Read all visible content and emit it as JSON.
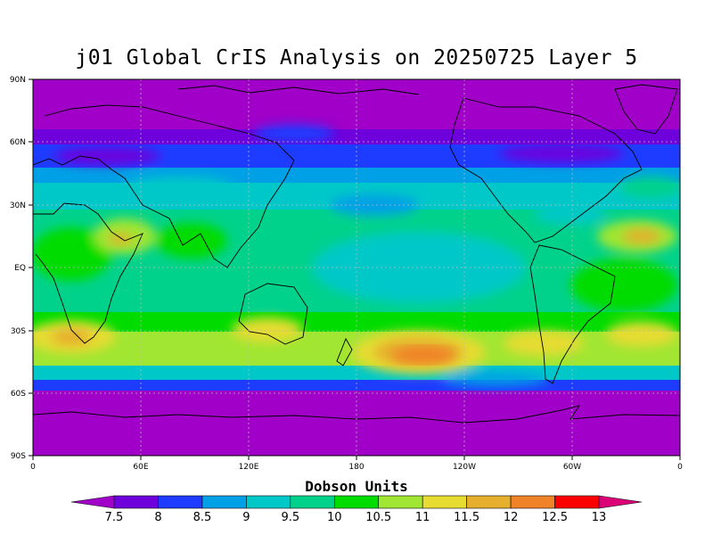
{
  "title": "j01 Global CrIS Analysis on 20250725 Layer 5",
  "lat_ticks": [
    "90N",
    "60N",
    "30N",
    "EQ",
    "30S",
    "60S",
    "90S"
  ],
  "lon_ticks": [
    "0",
    "60E",
    "120E",
    "180",
    "120W",
    "60W",
    "0"
  ],
  "colorbar": {
    "title": "Dobson Units",
    "labels": [
      "7.5",
      "8",
      "8.5",
      "9",
      "9.5",
      "10",
      "10.5",
      "11",
      "11.5",
      "12",
      "12.5",
      "13"
    ],
    "colors": [
      "#a000c8",
      "#6e00dc",
      "#1e3cff",
      "#00a0e6",
      "#00c8c8",
      "#00d28c",
      "#00dc00",
      "#a0e632",
      "#e6dc32",
      "#e6af2d",
      "#f08228",
      "#fa0000",
      "#dc0078"
    ]
  }
}
